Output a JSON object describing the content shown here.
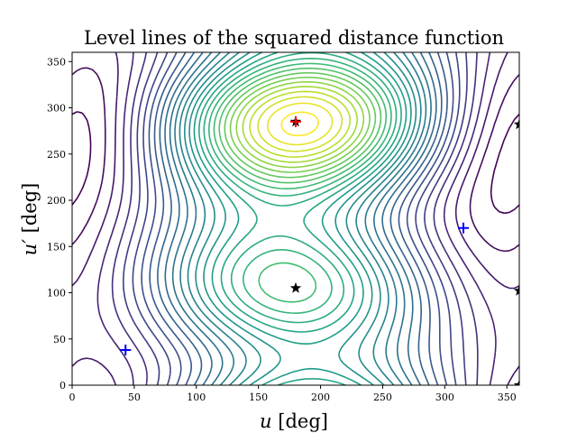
{
  "chart_data": {
    "type": "contour",
    "title": "Level lines of the squared distance function",
    "xlabel": "u [deg]",
    "ylabel": "u′ [deg]",
    "xlim": [
      0,
      360
    ],
    "ylim": [
      0,
      360
    ],
    "xticks": [
      0,
      50,
      100,
      150,
      200,
      250,
      300,
      350
    ],
    "yticks": [
      0,
      50,
      100,
      150,
      200,
      250,
      300,
      350
    ],
    "grid": false,
    "colormap": "viridis",
    "contour_levels": 30,
    "markers": [
      {
        "type": "plus",
        "color": "#ff0000",
        "x": 180,
        "y": 285
      },
      {
        "type": "plus",
        "color": "#0000ff",
        "x": 43,
        "y": 38
      },
      {
        "type": "plus",
        "color": "#0000ff",
        "x": 315,
        "y": 170
      },
      {
        "type": "star",
        "color": "#000000",
        "x": 180,
        "y": 285
      },
      {
        "type": "star",
        "color": "#000000",
        "x": 180,
        "y": 105
      },
      {
        "type": "star",
        "color": "#000000",
        "x": 360,
        "y": 282
      },
      {
        "type": "star",
        "color": "#000000",
        "x": 360,
        "y": 102
      },
      {
        "type": "star",
        "color": "#000000",
        "x": 360,
        "y": 0
      }
    ]
  }
}
